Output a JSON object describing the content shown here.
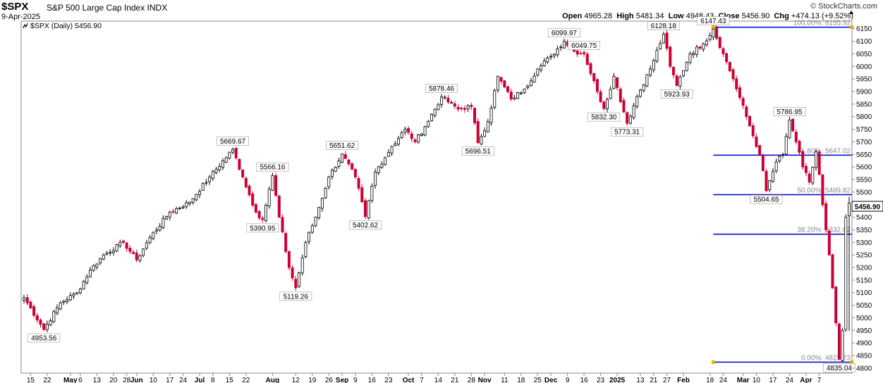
{
  "header": {
    "ticker": "$SPX",
    "name": "S&P 500 Large Cap Index INDX",
    "date": "9-Apr-2025",
    "logo": "© StockCharts.com",
    "open_label": "Open",
    "open": "4965.28",
    "high_label": "High",
    "high": "5481.34",
    "low_label": "Low",
    "low": "4948.43",
    "close_label": "Close",
    "close": "5456.90",
    "chg_label": "Chg",
    "chg": "+474.13 (+9.52%)",
    "up_arrow_icon": "triangle-up-icon"
  },
  "legend": {
    "text": "$SPX (Daily) 5456.90",
    "icon": "line-chart-icon"
  },
  "chart_data": {
    "type": "candlestick",
    "title": "$SPX S&P 500 Large Cap Index INDX",
    "y_ticks": [
      4800,
      4850,
      4900,
      4950,
      5000,
      5050,
      5100,
      5150,
      5200,
      5250,
      5300,
      5350,
      5400,
      5450,
      5500,
      5550,
      5600,
      5650,
      5700,
      5750,
      5800,
      5850,
      5900,
      5950,
      6000,
      6050,
      6100,
      6150
    ],
    "ylim": [
      4780,
      6180
    ],
    "x_ticks": [
      {
        "t": "15",
        "i": 2
      },
      {
        "t": "22",
        "i": 7
      },
      {
        "t": "May",
        "i": 14,
        "bold": true
      },
      {
        "t": "6",
        "i": 17
      },
      {
        "t": "13",
        "i": 22
      },
      {
        "t": "20",
        "i": 27
      },
      {
        "t": "28",
        "i": 31
      },
      {
        "t": "Jun",
        "i": 34,
        "bold": true
      },
      {
        "t": "10",
        "i": 39
      },
      {
        "t": "17",
        "i": 44
      },
      {
        "t": "24",
        "i": 48
      },
      {
        "t": "Jul",
        "i": 53,
        "bold": true
      },
      {
        "t": "8",
        "i": 57
      },
      {
        "t": "15",
        "i": 62
      },
      {
        "t": "22",
        "i": 67
      },
      {
        "t": "Aug",
        "i": 75,
        "bold": true
      },
      {
        "t": "12",
        "i": 82
      },
      {
        "t": "19",
        "i": 87
      },
      {
        "t": "26",
        "i": 92
      },
      {
        "t": "Sep",
        "i": 96,
        "bold": true
      },
      {
        "t": "9",
        "i": 100
      },
      {
        "t": "16",
        "i": 105
      },
      {
        "t": "23",
        "i": 110
      },
      {
        "t": "Oct",
        "i": 116,
        "bold": true
      },
      {
        "t": "7",
        "i": 120
      },
      {
        "t": "14",
        "i": 125
      },
      {
        "t": "21",
        "i": 130
      },
      {
        "t": "28",
        "i": 135
      },
      {
        "t": "Nov",
        "i": 139,
        "bold": true
      },
      {
        "t": "11",
        "i": 145
      },
      {
        "t": "18",
        "i": 150
      },
      {
        "t": "25",
        "i": 155
      },
      {
        "t": "Dec",
        "i": 159,
        "bold": true
      },
      {
        "t": "9",
        "i": 164
      },
      {
        "t": "16",
        "i": 169
      },
      {
        "t": "23",
        "i": 174
      },
      {
        "t": "2025",
        "i": 179,
        "bold": true
      },
      {
        "t": "13",
        "i": 186
      },
      {
        "t": "21",
        "i": 190
      },
      {
        "t": "27",
        "i": 194
      },
      {
        "t": "Feb",
        "i": 199,
        "bold": true
      },
      {
        "t": "18",
        "i": 207
      },
      {
        "t": "24",
        "i": 211
      },
      {
        "t": "Mar",
        "i": 217,
        "bold": true
      },
      {
        "t": "10",
        "i": 221
      },
      {
        "t": "17",
        "i": 226
      },
      {
        "t": "24",
        "i": 231
      },
      {
        "t": "Apr",
        "i": 236,
        "bold": true
      },
      {
        "t": "7",
        "i": 240
      }
    ],
    "anchors": [
      [
        0,
        5080
      ],
      [
        6,
        4953.56
      ],
      [
        11,
        5060
      ],
      [
        16,
        5100
      ],
      [
        20,
        5190
      ],
      [
        24,
        5250
      ],
      [
        30,
        5300
      ],
      [
        34,
        5230
      ],
      [
        38,
        5320
      ],
      [
        44,
        5420
      ],
      [
        50,
        5460
      ],
      [
        56,
        5560
      ],
      [
        63,
        5669.67
      ],
      [
        66,
        5560
      ],
      [
        70,
        5420
      ],
      [
        72,
        5390.95
      ],
      [
        75,
        5566.16
      ],
      [
        77,
        5400
      ],
      [
        80,
        5200
      ],
      [
        82,
        5119.26
      ],
      [
        85,
        5300
      ],
      [
        88,
        5400
      ],
      [
        92,
        5560
      ],
      [
        96,
        5651.62
      ],
      [
        100,
        5560
      ],
      [
        103,
        5402.62
      ],
      [
        106,
        5580
      ],
      [
        111,
        5680
      ],
      [
        115,
        5750
      ],
      [
        118,
        5700
      ],
      [
        121,
        5760
      ],
      [
        126,
        5878.46
      ],
      [
        131,
        5830
      ],
      [
        135,
        5840
      ],
      [
        137,
        5696.51
      ],
      [
        140,
        5780
      ],
      [
        143,
        5960
      ],
      [
        147,
        5870
      ],
      [
        151,
        5910
      ],
      [
        155,
        5990
      ],
      [
        159,
        6040
      ],
      [
        163,
        6099.97
      ],
      [
        166,
        6060
      ],
      [
        169,
        6049.75
      ],
      [
        173,
        5900
      ],
      [
        175,
        5832.3
      ],
      [
        178,
        5960
      ],
      [
        182,
        5773.31
      ],
      [
        185,
        5880
      ],
      [
        189,
        5990
      ],
      [
        193,
        6128.18
      ],
      [
        195,
        6000
      ],
      [
        197,
        5923.93
      ],
      [
        201,
        6050
      ],
      [
        205,
        6090
      ],
      [
        208,
        6147.43
      ],
      [
        211,
        6050
      ],
      [
        214,
        5950
      ],
      [
        218,
        5800
      ],
      [
        222,
        5650
      ],
      [
        224,
        5504.65
      ],
      [
        227,
        5620
      ],
      [
        229,
        5650
      ],
      [
        231,
        5786.95
      ],
      [
        233,
        5700
      ],
      [
        235,
        5600
      ],
      [
        237,
        5540
      ],
      [
        239,
        5660
      ],
      [
        240,
        5570
      ],
      [
        241,
        5450
      ],
      [
        243,
        5250
      ],
      [
        245,
        4980
      ],
      [
        246,
        4835.04
      ],
      [
        247,
        4950
      ],
      [
        248,
        5400
      ],
      [
        249,
        5456.9
      ]
    ],
    "annotations": [
      {
        "i": 6,
        "v": 4953.56,
        "text": "4953.56",
        "pos": "below"
      },
      {
        "i": 63,
        "v": 5669.67,
        "text": "5669.67",
        "pos": "above"
      },
      {
        "i": 72,
        "v": 5390.95,
        "text": "5390.95",
        "pos": "below"
      },
      {
        "i": 75,
        "v": 5566.16,
        "text": "5566.16",
        "pos": "above"
      },
      {
        "i": 82,
        "v": 5119.26,
        "text": "5119.26",
        "pos": "below"
      },
      {
        "i": 96,
        "v": 5651.62,
        "text": "5651.62",
        "pos": "above"
      },
      {
        "i": 103,
        "v": 5402.62,
        "text": "5402.62",
        "pos": "below"
      },
      {
        "i": 126,
        "v": 5878.46,
        "text": "5878.46",
        "pos": "above"
      },
      {
        "i": 137,
        "v": 5696.51,
        "text": "5696.51",
        "pos": "below"
      },
      {
        "i": 163,
        "v": 6099.97,
        "text": "6099.97",
        "pos": "above"
      },
      {
        "i": 169,
        "v": 6049.75,
        "text": "6049.75",
        "pos": "above"
      },
      {
        "i": 175,
        "v": 5832.3,
        "text": "5832.30",
        "pos": "below"
      },
      {
        "i": 182,
        "v": 5773.31,
        "text": "5773.31",
        "pos": "below"
      },
      {
        "i": 193,
        "v": 6128.18,
        "text": "6128.18",
        "pos": "above"
      },
      {
        "i": 197,
        "v": 5923.93,
        "text": "5923.93",
        "pos": "below"
      },
      {
        "i": 208,
        "v": 6147.43,
        "text": "6147.43",
        "pos": "above"
      },
      {
        "i": 224,
        "v": 5504.65,
        "text": "5504.65",
        "pos": "below"
      },
      {
        "i": 231,
        "v": 5786.95,
        "text": "5786.95",
        "pos": "above"
      },
      {
        "i": 246,
        "v": 4835.04,
        "text": "4835.04",
        "pos": "below"
      }
    ],
    "fib_start_i": 208,
    "fib_levels": [
      {
        "pct": "100.00%",
        "v": 6155.92,
        "text": "100.00%: 6155.92"
      },
      {
        "pct": "61.80%",
        "v": 5647.02,
        "text": "61.80%: 5647.02"
      },
      {
        "pct": "50.00%",
        "v": 5489.82,
        "text": "50.00%: 5489.82"
      },
      {
        "pct": "38.20%",
        "v": 5332.62,
        "text": "38.20%: 5332.62"
      },
      {
        "pct": "0.00%",
        "v": 4823.73,
        "text": "0.00%: 4823.73"
      }
    ],
    "last_value": "5456.90",
    "colors": {
      "up": "#ffffff",
      "up_border": "#000000",
      "down": "#cc0033",
      "fib_line": "#0000cc",
      "fib_marker": "#e8b200"
    }
  }
}
